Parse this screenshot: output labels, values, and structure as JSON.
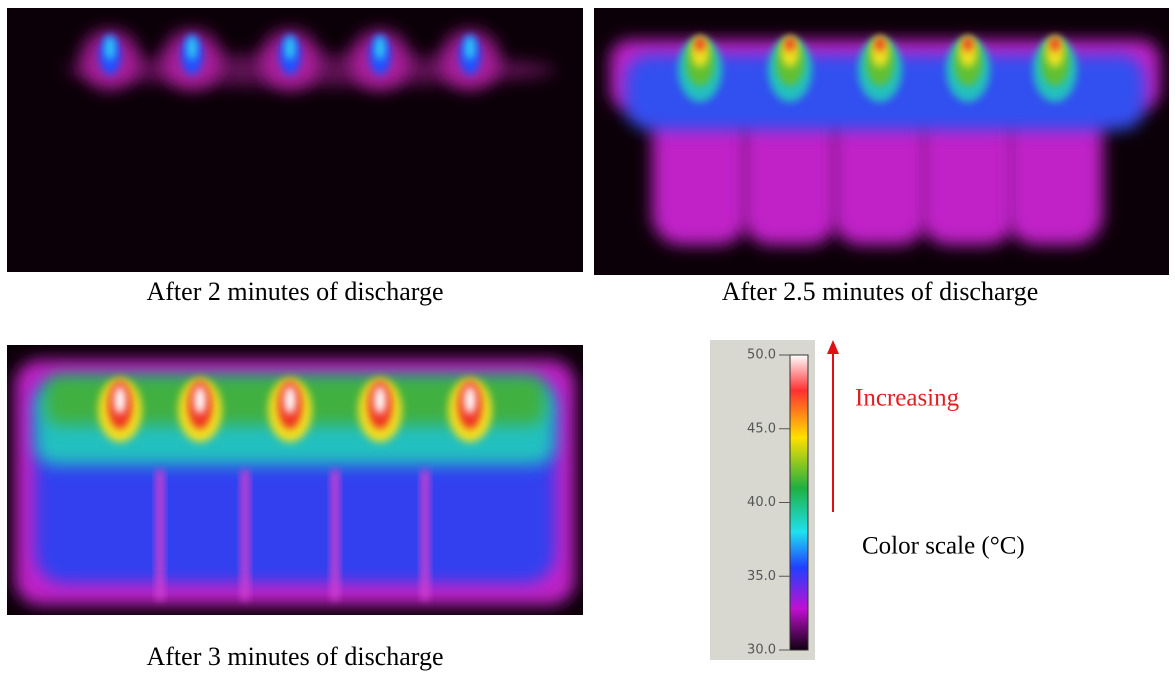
{
  "panels": [
    {
      "caption": "After 2 minutes of discharge"
    },
    {
      "caption": "After 2.5 minutes of discharge"
    },
    {
      "caption": "After 3 minutes of discharge"
    }
  ],
  "color_scale": {
    "ticks": [
      {
        "value": 50,
        "label": "50.0"
      },
      {
        "value": 45,
        "label": "45.0"
      },
      {
        "value": 40,
        "label": "40.0"
      },
      {
        "value": 35,
        "label": "35.0"
      },
      {
        "value": 30,
        "label": "30.0"
      }
    ],
    "annotation": "Increasing",
    "label": "Color scale (°C)"
  }
}
